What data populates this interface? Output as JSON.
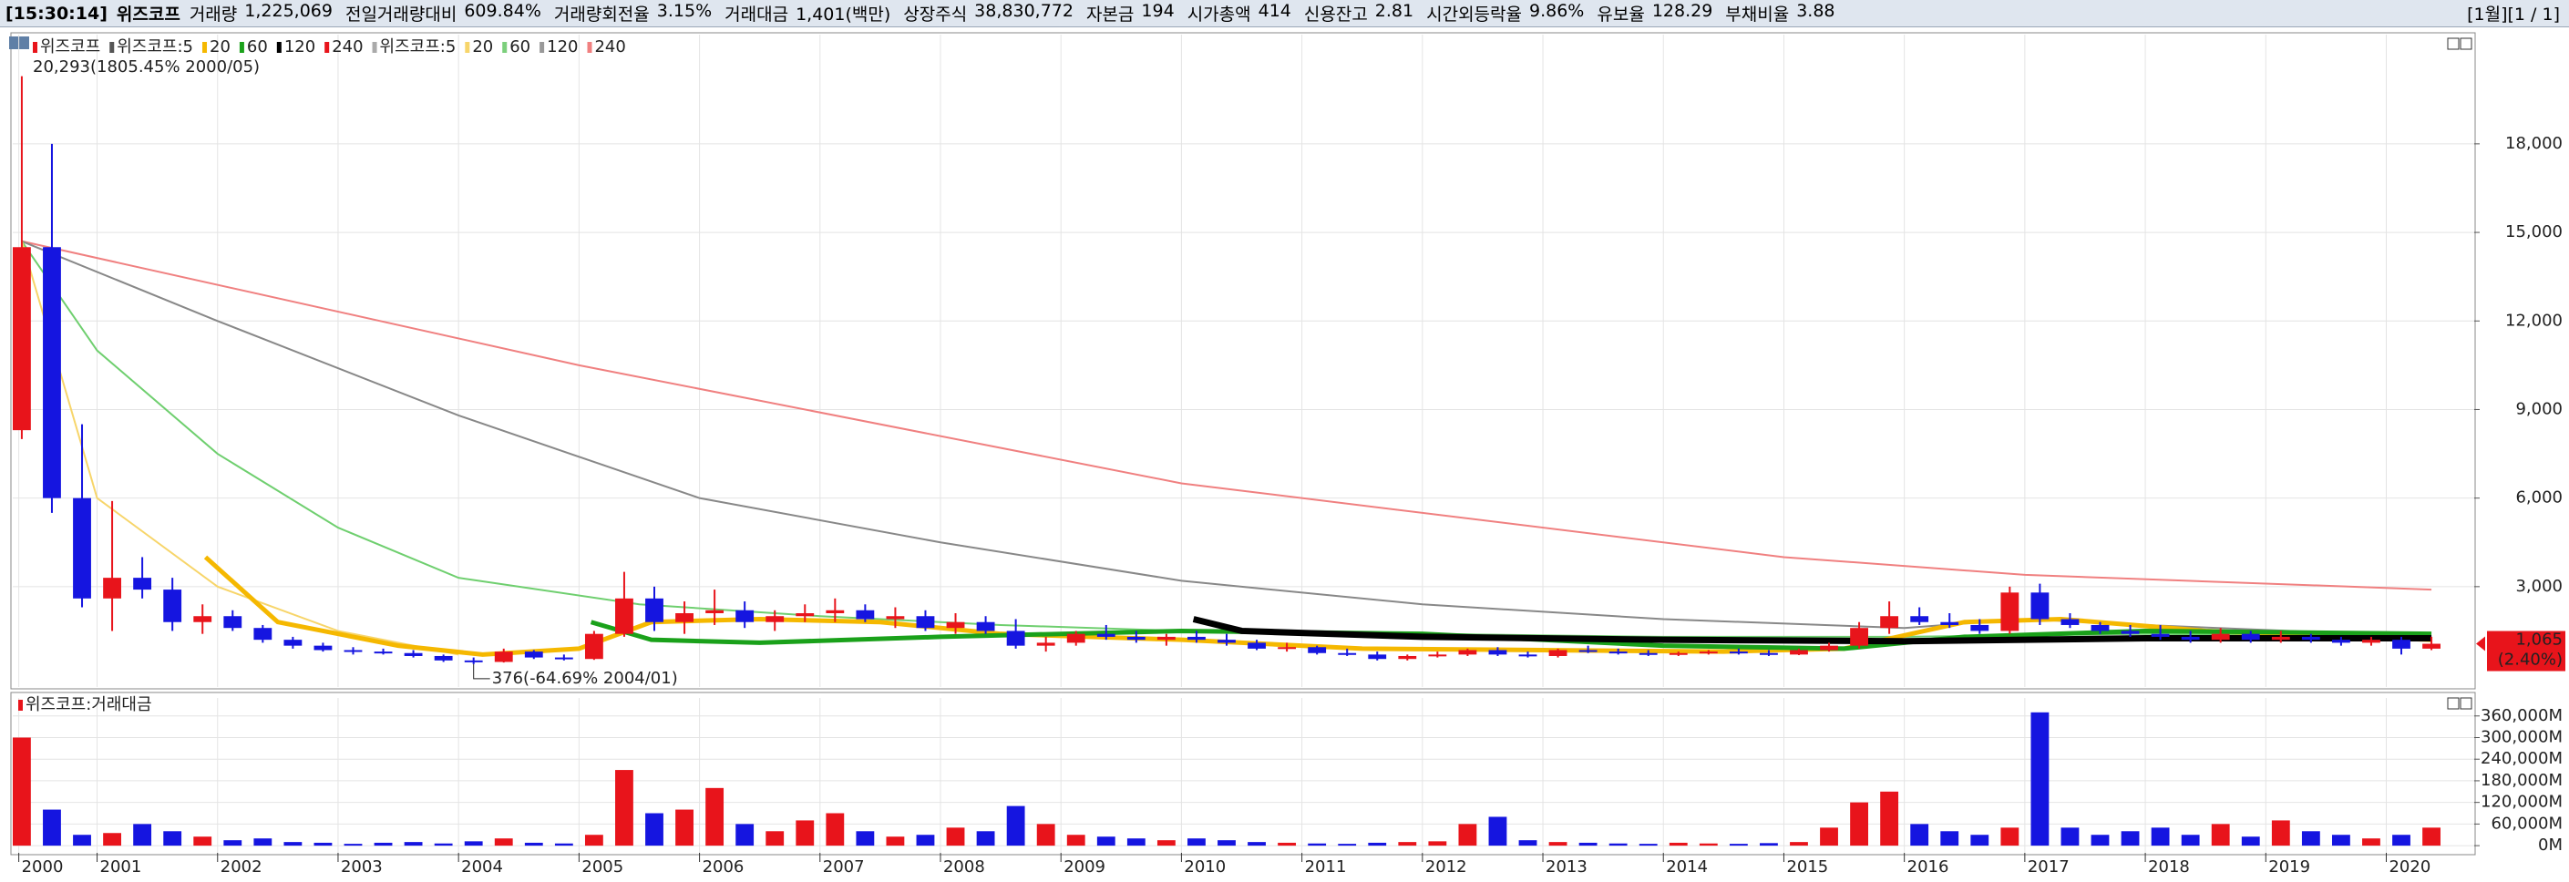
{
  "header": {
    "time": "[15:30:14]",
    "name": "위즈코프",
    "fields": [
      {
        "label": "거래량",
        "value": "1,225,069"
      },
      {
        "label": "전일거래량대비",
        "value": "609.84%"
      },
      {
        "label": "거래량회전율",
        "value": "3.15%"
      },
      {
        "label": "거래대금",
        "value": "1,401(백만)"
      },
      {
        "label": "상장주식",
        "value": "38,830,772"
      },
      {
        "label": "자본금",
        "value": "194"
      },
      {
        "label": "시가총액",
        "value": "414"
      },
      {
        "label": "신용잔고",
        "value": "2.81"
      },
      {
        "label": "시간외등락율",
        "value": "9.86%"
      },
      {
        "label": "유보율",
        "value": "128.29"
      },
      {
        "label": "부채비율",
        "value": "3.88"
      }
    ],
    "page": "[1월][1 / 1]"
  },
  "chart_data": [
    {
      "type": "candlestick",
      "legend": [
        {
          "name": "위즈코프",
          "color": "#e8141b"
        },
        {
          "name": "위즈코프:5",
          "color": "#555555"
        },
        {
          "name": "20",
          "color": "#f5b800"
        },
        {
          "name": "60",
          "color": "#1aa11a"
        },
        {
          "name": "120",
          "color": "#000000"
        },
        {
          "name": "240",
          "color": "#e8141b"
        },
        {
          "name": "위즈코프:5",
          "color": "#aaaaaa"
        },
        {
          "name": "20",
          "color": "#f7d56a"
        },
        {
          "name": "60",
          "color": "#7ccf7c"
        },
        {
          "name": "120",
          "color": "#999999"
        },
        {
          "name": "240",
          "color": "#f08080"
        }
      ],
      "up_color": "#e8141b",
      "down_color": "#1515e0",
      "x": [
        2000.375,
        2000.625,
        2000.875,
        2001.125,
        2001.375,
        2001.625,
        2001.875,
        2002.125,
        2002.375,
        2002.625,
        2002.875,
        2003.125,
        2003.375,
        2003.625,
        2003.875,
        2004.125,
        2004.375,
        2004.625,
        2004.875,
        2005.125,
        2005.375,
        2005.625,
        2005.875,
        2006.125,
        2006.375,
        2006.625,
        2006.875,
        2007.125,
        2007.375,
        2007.625,
        2007.875,
        2008.125,
        2008.375,
        2008.625,
        2008.875,
        2009.125,
        2009.375,
        2009.625,
        2009.875,
        2010.125,
        2010.375,
        2010.625,
        2010.875,
        2011.125,
        2011.375,
        2011.625,
        2011.875,
        2012.125,
        2012.375,
        2012.625,
        2012.875,
        2013.125,
        2013.375,
        2013.625,
        2013.875,
        2014.125,
        2014.375,
        2014.625,
        2014.875,
        2015.125,
        2015.375,
        2015.625,
        2015.875,
        2016.125,
        2016.375,
        2016.625,
        2016.875,
        2017.125,
        2017.375,
        2017.625,
        2017.875,
        2018.125,
        2018.375,
        2018.625,
        2018.875,
        2019.125,
        2019.375,
        2019.625,
        2019.875,
        2020.125,
        2020.375
      ],
      "open": [
        8300,
        14500,
        6000,
        2600,
        3300,
        2900,
        1800,
        2000,
        1600,
        1200,
        1000,
        850,
        800,
        750,
        650,
        500,
        450,
        800,
        600,
        550,
        1400,
        2600,
        1800,
        2100,
        2200,
        1800,
        2000,
        2100,
        2200,
        1900,
        2000,
        1600,
        1800,
        1500,
        1000,
        1100,
        1400,
        1300,
        1200,
        1300,
        1200,
        1100,
        900,
        950,
        750,
        700,
        550,
        650,
        700,
        850,
        700,
        650,
        850,
        800,
        750,
        700,
        750,
        800,
        750,
        700,
        850,
        1000,
        1600,
        2000,
        1800,
        1700,
        1500,
        2800,
        1900,
        1700,
        1500,
        1400,
        1300,
        1200,
        1400,
        1200,
        1300,
        1200,
        1100,
        1200,
        900
      ],
      "high": [
        20293,
        18000,
        8500,
        5900,
        4000,
        3300,
        2400,
        2200,
        1700,
        1300,
        1100,
        950,
        900,
        850,
        700,
        600,
        900,
        850,
        700,
        1500,
        3500,
        3000,
        2500,
        2900,
        2500,
        2200,
        2400,
        2600,
        2400,
        2300,
        2200,
        2100,
        2000,
        1900,
        1300,
        1500,
        1700,
        1500,
        1400,
        1500,
        1400,
        1200,
        1100,
        1000,
        900,
        800,
        700,
        800,
        900,
        950,
        800,
        900,
        1000,
        900,
        850,
        800,
        850,
        900,
        850,
        900,
        1100,
        1800,
        2500,
        2300,
        2100,
        1900,
        3000,
        3100,
        2100,
        1800,
        1700,
        1700,
        1500,
        1600,
        1500,
        1500,
        1400,
        1300,
        1300,
        1300,
        1300
      ],
      "low": [
        8000,
        5500,
        2300,
        1500,
        2600,
        1500,
        1400,
        1500,
        1100,
        900,
        800,
        700,
        700,
        600,
        450,
        376,
        430,
        550,
        500,
        520,
        1300,
        1500,
        1400,
        1700,
        1600,
        1500,
        1800,
        1800,
        1800,
        1600,
        1500,
        1400,
        1400,
        900,
        800,
        1000,
        1200,
        1100,
        1000,
        1100,
        1000,
        850,
        800,
        700,
        650,
        500,
        500,
        600,
        650,
        650,
        600,
        600,
        750,
        700,
        650,
        650,
        700,
        700,
        650,
        680,
        800,
        900,
        1400,
        1700,
        1600,
        1400,
        1400,
        1700,
        1600,
        1400,
        1300,
        1200,
        1100,
        1100,
        1100,
        1100,
        1100,
        1000,
        1000,
        700,
        850
      ],
      "close": [
        14500,
        6000,
        2600,
        3300,
        2900,
        1800,
        2000,
        1600,
        1200,
        1000,
        850,
        800,
        750,
        650,
        500,
        450,
        800,
        600,
        550,
        1400,
        2600,
        1800,
        2100,
        2200,
        1800,
        2000,
        2100,
        2200,
        1900,
        2000,
        1600,
        1800,
        1500,
        1000,
        1100,
        1400,
        1300,
        1200,
        1300,
        1200,
        1100,
        900,
        950,
        750,
        700,
        550,
        650,
        700,
        850,
        700,
        650,
        850,
        800,
        750,
        700,
        750,
        800,
        750,
        700,
        850,
        1000,
        1600,
        2000,
        1800,
        1700,
        1500,
        2800,
        1900,
        1700,
        1500,
        1400,
        1300,
        1200,
        1400,
        1200,
        1300,
        1200,
        1100,
        1200,
        900,
        1065
      ],
      "lines": [
        {
          "color": "#f08080",
          "width": 2,
          "x": [
            2000.375,
            2005,
            2010,
            2015,
            2017,
            2020.375
          ],
          "values": [
            14700,
            10500,
            6500,
            4000,
            3400,
            2900
          ]
        },
        {
          "color": "#888888",
          "width": 2,
          "x": [
            2000.375,
            2002,
            2004,
            2006,
            2008,
            2010,
            2012,
            2014,
            2016,
            2017,
            2018,
            2020.375
          ],
          "values": [
            14700,
            12000,
            8800,
            6000,
            4500,
            3200,
            2400,
            1900,
            1600,
            1900,
            1700,
            1300
          ]
        },
        {
          "color": "#6fcf6f",
          "width": 2,
          "x": [
            2000.375,
            2001,
            2002,
            2003,
            2004,
            2005.5,
            2007,
            2008.5,
            2010,
            2012,
            2014,
            2016,
            2018,
            2020.375
          ],
          "values": [
            14700,
            11000,
            7500,
            5000,
            3300,
            2400,
            2000,
            1700,
            1500,
            1400,
            1300,
            1300,
            1400,
            1300
          ]
        },
        {
          "color": "#f7d56a",
          "width": 2,
          "x": [
            2000.375,
            2001,
            2002,
            2003,
            2004
          ],
          "values": [
            14700,
            6000,
            3000,
            1500,
            700
          ]
        },
        {
          "color": "#f5b800",
          "width": 5,
          "x": [
            2001.9,
            2002.5,
            2003.5,
            2004.2,
            2005,
            2005.6,
            2006.5,
            2007.5,
            2008.5,
            2010,
            2011.5,
            2013,
            2014.5,
            2015.5,
            2016.5,
            2017.3,
            2018.5,
            2020.375
          ],
          "values": [
            4000,
            1800,
            1000,
            700,
            900,
            1800,
            1900,
            1800,
            1400,
            1200,
            900,
            850,
            800,
            900,
            1800,
            1900,
            1500,
            1200
          ]
        },
        {
          "color": "#1aa11a",
          "width": 5,
          "x": [
            2005.1,
            2005.6,
            2006.5,
            2008,
            2010,
            2012,
            2014,
            2015.5,
            2016.5,
            2018,
            2020.375
          ],
          "values": [
            1800,
            1200,
            1100,
            1300,
            1500,
            1400,
            1000,
            900,
            1300,
            1500,
            1400
          ]
        },
        {
          "color": "#000000",
          "width": 7,
          "x": [
            2010.1,
            2010.5,
            2012,
            2014,
            2016,
            2018,
            2020.375
          ],
          "values": [
            1900,
            1500,
            1300,
            1200,
            1150,
            1250,
            1250
          ]
        }
      ],
      "ylim": [
        -400,
        21700
      ],
      "yticks": [
        {
          "value": 3000,
          "label": "3,000"
        },
        {
          "value": 6000,
          "label": "6,000"
        },
        {
          "value": 9000,
          "label": "9,000"
        },
        {
          "value": 12000,
          "label": "12,000"
        },
        {
          "value": 15000,
          "label": "15,000"
        },
        {
          "value": 18000,
          "label": "18,000"
        }
      ],
      "xlim": [
        2000.3,
        2020.73
      ],
      "grid": true,
      "high_note": "20,293(1805.45% 2000/05)",
      "low_note": "376(-64.69% 2004/01)",
      "last_label": "1,065",
      "last_change": "(2.40%)"
    },
    {
      "type": "bar",
      "legend": [
        {
          "name": "위즈코프:거래대금",
          "color": "#e8141b"
        }
      ],
      "values": [
        300000,
        100000,
        30000,
        35000,
        60000,
        40000,
        25000,
        15000,
        20000,
        10000,
        8000,
        5000,
        8000,
        10000,
        6000,
        12000,
        20000,
        8000,
        6000,
        30000,
        210000,
        90000,
        100000,
        160000,
        60000,
        40000,
        70000,
        90000,
        40000,
        25000,
        30000,
        50000,
        40000,
        110000,
        60000,
        30000,
        25000,
        20000,
        15000,
        20000,
        15000,
        10000,
        8000,
        6000,
        5000,
        8000,
        10000,
        12000,
        60000,
        80000,
        15000,
        10000,
        8000,
        6000,
        5000,
        8000,
        6000,
        5000,
        7000,
        10000,
        50000,
        120000,
        150000,
        60000,
        40000,
        30000,
        50000,
        370000,
        50000,
        30000,
        40000,
        50000,
        30000,
        60000,
        25000,
        70000,
        40000,
        30000,
        20000,
        30000,
        50000
      ],
      "ylim": [
        -20000,
        410000
      ],
      "yticks": [
        {
          "value": 0,
          "label": "0M"
        },
        {
          "value": 60000,
          "label": "60,000M"
        },
        {
          "value": 120000,
          "label": "120,000M"
        },
        {
          "value": 180000,
          "label": "180,000M"
        },
        {
          "value": 240000,
          "label": "240,000M"
        },
        {
          "value": 300000,
          "label": "300,000M"
        },
        {
          "value": 360000,
          "label": "360,000M"
        }
      ],
      "xticks": [
        {
          "value": 2000.35,
          "label": "2000"
        },
        2001,
        2002,
        2003,
        2004,
        2005,
        2006,
        2007,
        2008,
        2009,
        2010,
        2011,
        2012,
        2013,
        2014,
        2015,
        2016,
        2017,
        2018,
        2019,
        2020
      ],
      "grid": true
    }
  ]
}
